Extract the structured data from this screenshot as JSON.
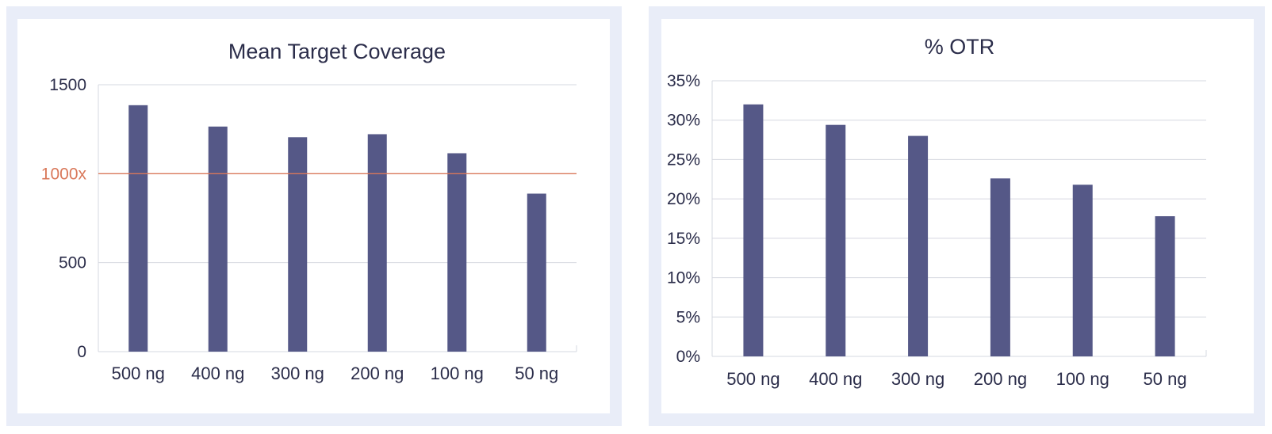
{
  "colors": {
    "bar": "#555887",
    "reference_line": "#d9785a",
    "grid": "#d6d8e0",
    "panel_border": "#e9edf8"
  },
  "chart_data": [
    {
      "type": "bar",
      "title": "Mean Target Coverage",
      "categories": [
        "500 ng",
        "400 ng",
        "300 ng",
        "200 ng",
        "100 ng",
        "50 ng"
      ],
      "values": [
        1385,
        1265,
        1205,
        1222,
        1115,
        888
      ],
      "ylim": [
        0,
        1500
      ],
      "yticks": [
        0,
        500,
        1500
      ],
      "ytick_labels": [
        "0",
        "500",
        "1500"
      ],
      "reference_line": {
        "value": 1000,
        "label": "1000x"
      },
      "grid": true,
      "xlabel": "",
      "ylabel": ""
    },
    {
      "type": "bar",
      "title": "% OTR",
      "categories": [
        "500 ng",
        "400 ng",
        "300 ng",
        "200 ng",
        "100 ng",
        "50 ng"
      ],
      "values": [
        32.0,
        29.4,
        28.0,
        22.6,
        21.8,
        17.8
      ],
      "ylim": [
        0,
        35
      ],
      "yticks": [
        0,
        5,
        10,
        15,
        20,
        25,
        30,
        35
      ],
      "ytick_labels": [
        "0%",
        "5%",
        "10%",
        "15%",
        "20%",
        "25%",
        "30%",
        "35%"
      ],
      "grid": true,
      "xlabel": "",
      "ylabel": ""
    }
  ]
}
